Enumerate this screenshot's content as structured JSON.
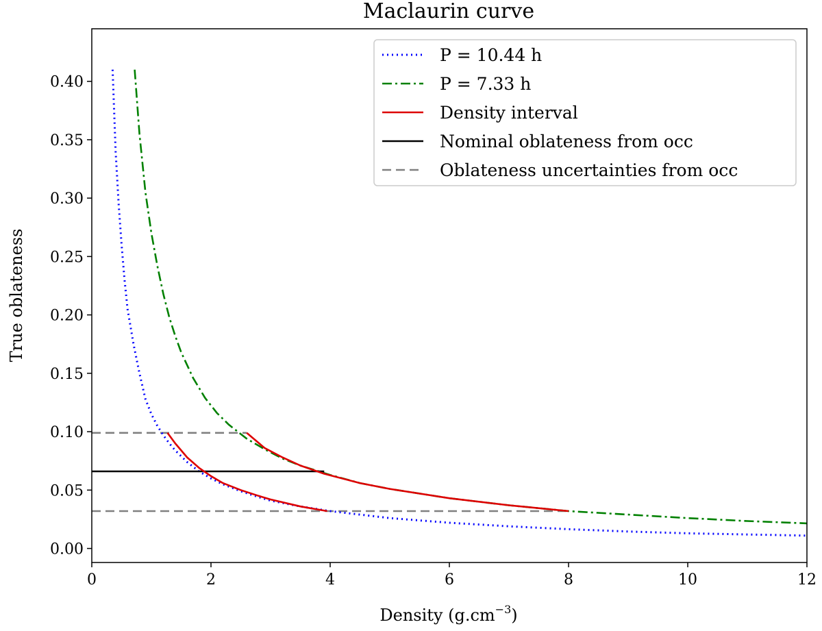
{
  "chart_data": {
    "type": "line",
    "title": "Maclaurin curve",
    "xlabel_base": "Density (g.cm",
    "xlabel_exp": "−3",
    "xlabel_close": ")",
    "ylabel": "True oblateness",
    "xlim": [
      0,
      12
    ],
    "ylim": [
      -0.012,
      0.445
    ],
    "xticks": [
      0,
      2,
      4,
      6,
      8,
      10,
      12
    ],
    "xtick_labels": [
      "0",
      "2",
      "4",
      "6",
      "8",
      "10",
      "12"
    ],
    "yticks": [
      0.0,
      0.05,
      0.1,
      0.15,
      0.2,
      0.25,
      0.3,
      0.35,
      0.4
    ],
    "ytick_labels": [
      "0.00",
      "0.05",
      "0.10",
      "0.15",
      "0.20",
      "0.25",
      "0.30",
      "0.35",
      "0.40"
    ],
    "grid": false,
    "legend_position": "upper right",
    "series": [
      {
        "name": "P = 10.44 h",
        "color": "#0000ff",
        "style": "dotted",
        "x": [
          0.35,
          0.4,
          0.45,
          0.5,
          0.55,
          0.6,
          0.7,
          0.8,
          0.9,
          1.0,
          1.1,
          1.2,
          1.3,
          1.4,
          1.6,
          1.8,
          2.0,
          2.2,
          2.5,
          2.8,
          3.0,
          3.5,
          4.0,
          4.5,
          5.0,
          6.0,
          7.0,
          8.0,
          9.0,
          10.0,
          11.0,
          12.0
        ],
        "y": [
          0.41,
          0.34,
          0.295,
          0.26,
          0.23,
          0.205,
          0.175,
          0.15,
          0.128,
          0.115,
          0.105,
          0.097,
          0.09,
          0.084,
          0.074,
          0.066,
          0.06,
          0.055,
          0.049,
          0.044,
          0.041,
          0.036,
          0.032,
          0.029,
          0.026,
          0.022,
          0.019,
          0.0165,
          0.0145,
          0.013,
          0.012,
          0.011
        ]
      },
      {
        "name": "P = 7.33 h",
        "color": "#008000",
        "style": "dashdot",
        "x": [
          0.72,
          0.8,
          0.9,
          1.0,
          1.1,
          1.2,
          1.3,
          1.4,
          1.5,
          1.7,
          1.9,
          2.1,
          2.3,
          2.6,
          2.9,
          3.2,
          3.5,
          4.0,
          4.5,
          5.0,
          6.0,
          7.0,
          8.0,
          9.0,
          10.0,
          11.0,
          12.0
        ],
        "y": [
          0.41,
          0.355,
          0.305,
          0.27,
          0.242,
          0.218,
          0.198,
          0.182,
          0.168,
          0.146,
          0.129,
          0.116,
          0.106,
          0.094,
          0.085,
          0.077,
          0.071,
          0.063,
          0.056,
          0.051,
          0.043,
          0.037,
          0.032,
          0.029,
          0.026,
          0.0235,
          0.0215
        ]
      },
      {
        "name": "Density interval",
        "color": "#dd0000",
        "style": "solid",
        "segments": [
          {
            "x": [
              1.27,
              1.4,
              1.6,
              1.8,
              2.0,
              2.2,
              2.5,
              2.8,
              3.0,
              3.5,
              3.95
            ],
            "y": [
              0.099,
              0.09,
              0.078,
              0.069,
              0.062,
              0.056,
              0.05,
              0.045,
              0.042,
              0.036,
              0.032
            ]
          },
          {
            "x": [
              2.6,
              2.9,
              3.2,
              3.5,
              3.9,
              4.5,
              5.0,
              6.0,
              7.0,
              8.0
            ],
            "y": [
              0.099,
              0.086,
              0.078,
              0.071,
              0.064,
              0.056,
              0.051,
              0.043,
              0.037,
              0.032
            ]
          }
        ]
      },
      {
        "name": "Nominal oblateness from occ",
        "color": "#000000",
        "style": "solid",
        "x": [
          0,
          3.9
        ],
        "y": [
          0.066,
          0.066
        ]
      },
      {
        "name": "Oblateness uncertainties from occ",
        "color": "#808080",
        "style": "dashed",
        "segments": [
          {
            "x": [
              0,
              2.6
            ],
            "y": [
              0.099,
              0.099
            ]
          },
          {
            "x": [
              0,
              8.0
            ],
            "y": [
              0.032,
              0.032
            ]
          }
        ]
      }
    ]
  }
}
